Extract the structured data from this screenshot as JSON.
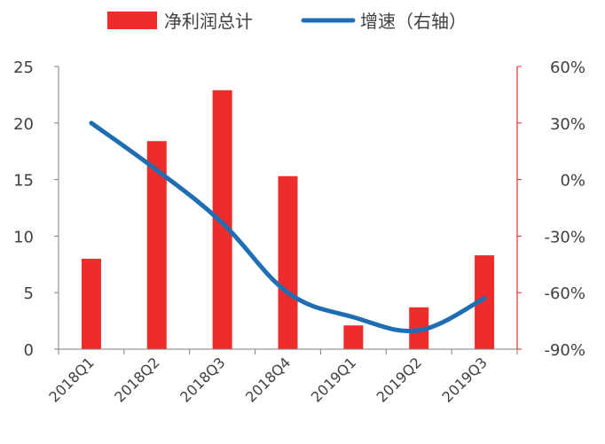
{
  "chart_data": {
    "type": "bar",
    "title": "",
    "categories": [
      "2018Q1",
      "2018Q2",
      "2018Q3",
      "2018Q4",
      "2019Q1",
      "2019Q2",
      "2019Q3"
    ],
    "series": [
      {
        "name": "净利润总计",
        "type": "bar",
        "axis": "left",
        "color": "#ee2c2c",
        "values": [
          8.0,
          18.4,
          22.9,
          15.3,
          2.1,
          3.7,
          8.3
        ]
      },
      {
        "name": "增速（右轴）",
        "type": "line",
        "axis": "right",
        "color": "#1f6eb4",
        "values": [
          30,
          5,
          -23,
          -60,
          -73,
          -80,
          -63
        ]
      }
    ],
    "y_left": {
      "ylim": [
        0,
        25
      ],
      "ticks": [
        "0",
        "5",
        "10",
        "15",
        "20",
        "25"
      ]
    },
    "y_right": {
      "ylim": [
        -90,
        60
      ],
      "ticks": [
        "-90%",
        "-60%",
        "-30%",
        "0%",
        "30%",
        "60%"
      ]
    },
    "legend_position": "top",
    "grid": false
  }
}
